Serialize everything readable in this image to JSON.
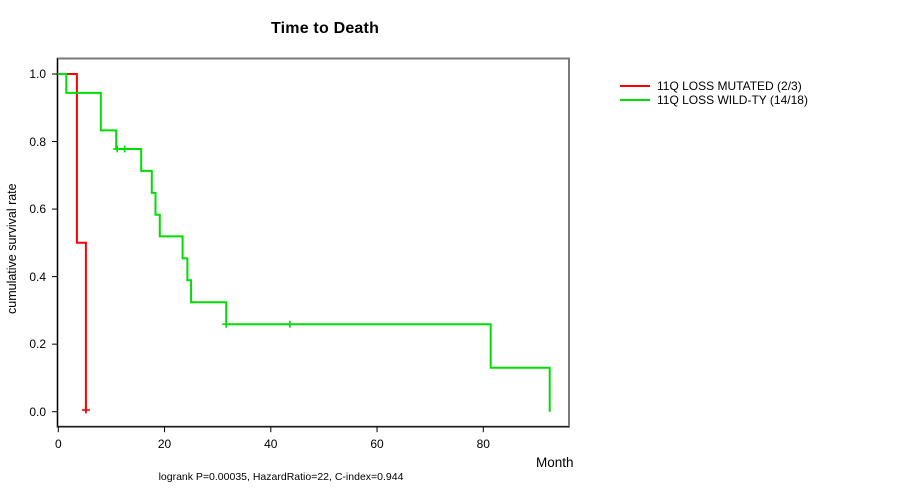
{
  "chart_data": {
    "type": "line",
    "subtype": "kaplan-meier-step",
    "title": "Time to Death",
    "xlabel": "Month",
    "ylabel": "cumulative survival rate",
    "annotation": "logrank P=0.00035, HazardRatio=22, C-index=0.944",
    "xlim": [
      0,
      96
    ],
    "ylim": [
      0,
      1
    ],
    "grid": false,
    "legend_position": "right-outside",
    "xticks": [
      0,
      20,
      40,
      60,
      80
    ],
    "xtick_labels": [
      "0",
      "20",
      "40",
      "60",
      "80"
    ],
    "yticks": [
      0.0,
      0.2,
      0.4,
      0.6,
      0.8,
      1.0
    ],
    "ytick_labels": [
      "0.0",
      "0.2",
      "0.4",
      "0.6",
      "0.8",
      "1.0"
    ],
    "series": [
      {
        "name": "11Q LOSS MUTATED (2/3)",
        "color": "#ff0000",
        "steps": [
          [
            0,
            1.0
          ],
          [
            3.5,
            0.5
          ],
          [
            5.2,
            0.0
          ]
        ],
        "censor_marks": [
          [
            5.2,
            0.005
          ]
        ]
      },
      {
        "name": "11Q LOSS WILD-TY (14/18)",
        "color": "#00dd00",
        "steps": [
          [
            0,
            1.0
          ],
          [
            1.5,
            0.944
          ],
          [
            8,
            0.833
          ],
          [
            10.9,
            0.778
          ],
          [
            15.6,
            0.713
          ],
          [
            17.6,
            0.648
          ],
          [
            18.3,
            0.583
          ],
          [
            19.1,
            0.519
          ],
          [
            23.4,
            0.454
          ],
          [
            24.3,
            0.389
          ],
          [
            25,
            0.324
          ],
          [
            31.6,
            0.259
          ],
          [
            81.4,
            0.13
          ],
          [
            92.5,
            0.0
          ]
        ],
        "censor_marks": [
          [
            11.1,
            0.778
          ],
          [
            12.5,
            0.778
          ],
          [
            31.6,
            0.259
          ],
          [
            43.6,
            0.259
          ]
        ]
      }
    ]
  }
}
